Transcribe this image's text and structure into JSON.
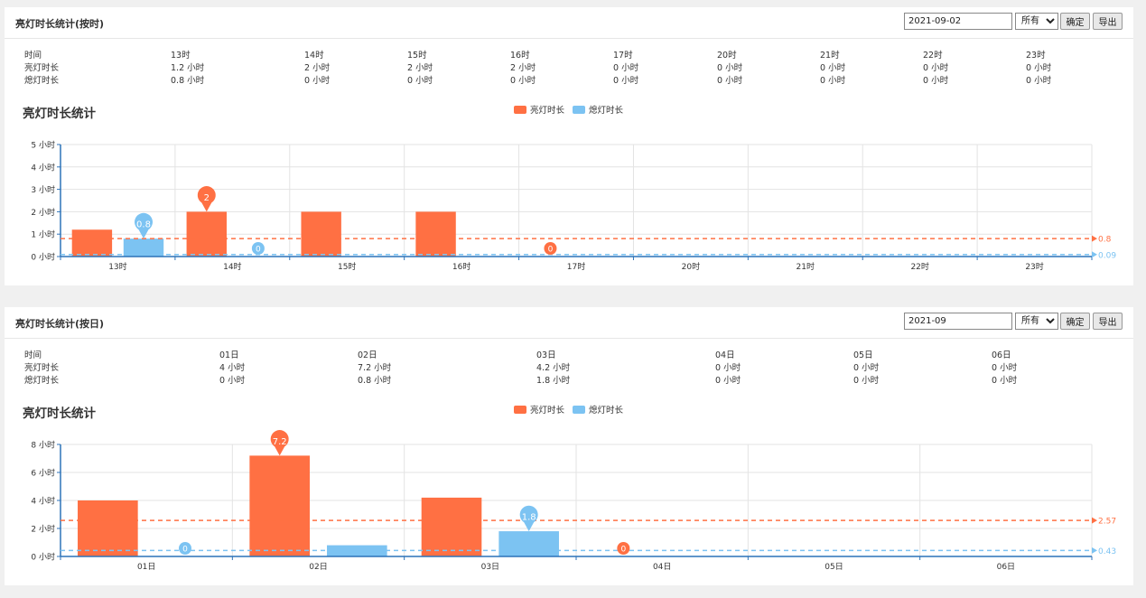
{
  "hourly": {
    "title": "亮灯时长统计(按时)",
    "date_value": "2021-09-02",
    "filter_selected": "所有",
    "confirm_label": "确定",
    "export_label": "导出",
    "table": {
      "row_labels": [
        "时间",
        "亮灯时长",
        "熄灯时长"
      ],
      "columns": [
        "13时",
        "14时",
        "15时",
        "16时",
        "17时",
        "20时",
        "21时",
        "22时",
        "23时"
      ],
      "on_values": [
        "1.2 小时",
        "2 小时",
        "2 小时",
        "2 小时",
        "0 小时",
        "0 小时",
        "0 小时",
        "0 小时",
        "0 小时"
      ],
      "off_values": [
        "0.8 小时",
        "0 小时",
        "0 小时",
        "0 小时",
        "0 小时",
        "0 小时",
        "0 小时",
        "0 小时",
        "0 小时"
      ]
    },
    "chart_data": {
      "type": "bar",
      "title": "亮灯时长统计",
      "categories": [
        "13时",
        "14时",
        "15时",
        "16时",
        "17时",
        "20时",
        "21时",
        "22时",
        "23时"
      ],
      "series": [
        {
          "name": "亮灯时长",
          "color": "#ff7043",
          "values": [
            1.2,
            2,
            2,
            2,
            0,
            0,
            0,
            0,
            0
          ]
        },
        {
          "name": "熄灯时长",
          "color": "#7cc3f2",
          "values": [
            0.8,
            0,
            0,
            0,
            0,
            0,
            0,
            0,
            0
          ]
        }
      ],
      "ylim": [
        0,
        5
      ],
      "yticks": [
        0,
        1,
        2,
        3,
        4,
        5
      ],
      "ytick_labels": [
        "0 小时",
        "1 小时",
        "2 小时",
        "3 小时",
        "4 小时",
        "5 小时"
      ],
      "max_markers": [
        {
          "series": 0,
          "category": 1,
          "label": "2"
        },
        {
          "series": 1,
          "category": 0,
          "label": "0.8"
        }
      ],
      "min_markers": [
        {
          "series": 0,
          "category": 4,
          "label": "0"
        },
        {
          "series": 1,
          "category": 1,
          "label": "0"
        }
      ],
      "mean_lines": [
        {
          "series": 0,
          "value": 0.8,
          "label": "0.8"
        },
        {
          "series": 1,
          "value": 0.09,
          "label": "0.09"
        }
      ],
      "legend": "top-center",
      "grid": true
    }
  },
  "daily": {
    "title": "亮灯时长统计(按日)",
    "date_value": "2021-09",
    "filter_selected": "所有",
    "confirm_label": "确定",
    "export_label": "导出",
    "table": {
      "row_labels": [
        "时间",
        "亮灯时长",
        "熄灯时长"
      ],
      "columns": [
        "01日",
        "02日",
        "03日",
        "04日",
        "05日",
        "06日"
      ],
      "on_values": [
        "4 小时",
        "7.2 小时",
        "4.2 小时",
        "0 小时",
        "0 小时",
        "0 小时"
      ],
      "off_values": [
        "0 小时",
        "0.8 小时",
        "1.8 小时",
        "0 小时",
        "0 小时",
        "0 小时"
      ]
    },
    "chart_data": {
      "type": "bar",
      "title": "亮灯时长统计",
      "categories": [
        "01日",
        "02日",
        "03日",
        "04日",
        "05日",
        "06日"
      ],
      "series": [
        {
          "name": "亮灯时长",
          "color": "#ff7043",
          "values": [
            4,
            7.2,
            4.2,
            0,
            0,
            0
          ]
        },
        {
          "name": "熄灯时长",
          "color": "#7cc3f2",
          "values": [
            0,
            0.8,
            1.8,
            0,
            0,
            0
          ]
        }
      ],
      "ylim": [
        0,
        8
      ],
      "yticks": [
        0,
        2,
        4,
        6,
        8
      ],
      "ytick_labels": [
        "0 小时",
        "2 小时",
        "4 小时",
        "6 小时",
        "8 小时"
      ],
      "max_markers": [
        {
          "series": 0,
          "category": 1,
          "label": "7.2"
        },
        {
          "series": 1,
          "category": 2,
          "label": "1.8"
        }
      ],
      "min_markers": [
        {
          "series": 0,
          "category": 3,
          "label": "0"
        },
        {
          "series": 1,
          "category": 0,
          "label": "0"
        }
      ],
      "mean_lines": [
        {
          "series": 0,
          "value": 2.57,
          "label": "2.57"
        },
        {
          "series": 1,
          "value": 0.43,
          "label": "0.43"
        }
      ],
      "legend": "top-center",
      "grid": true
    }
  }
}
